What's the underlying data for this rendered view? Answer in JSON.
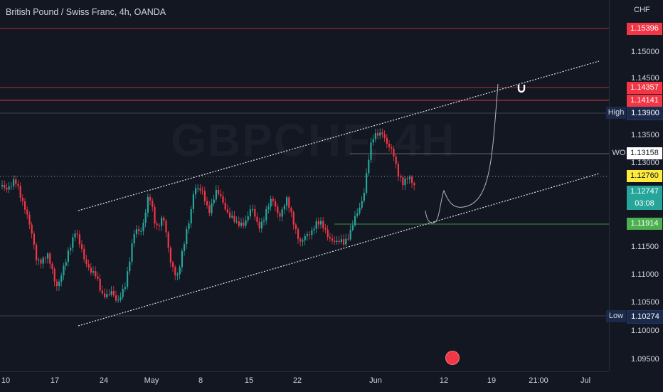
{
  "header": {
    "title": "British Pound / Swiss Franc, 4h, OANDA"
  },
  "price_axis": {
    "currency": "CHF",
    "ticks": [
      "1.15000",
      "1.14500",
      "1.13500",
      "1.13000",
      "1.11500",
      "1.11000",
      "1.10500",
      "1.10000",
      "1.09500"
    ],
    "tags": {
      "red_top": "1.15396",
      "red_1": "1.14357",
      "red_2": "1.14141",
      "high_label": "High",
      "high_value": "1.13900",
      "wo_label": "WO",
      "wo_value": "1.13158",
      "yellow": "1.12760",
      "current_price": "1.12747",
      "countdown": "03:08",
      "green_line": "1.11914",
      "low_label": "Low",
      "low_value": "1.10274"
    }
  },
  "time_axis": {
    "labels": [
      "10",
      "17",
      "24",
      "May",
      "8",
      "15",
      "22",
      "Jun",
      "12",
      "19",
      "21:00",
      "Jul"
    ]
  },
  "watermark": "GBPCHF, 4H",
  "colors": {
    "up": "#26a69a",
    "down": "#f23645",
    "background": "#131722",
    "grid": "#2a2e39"
  }
}
